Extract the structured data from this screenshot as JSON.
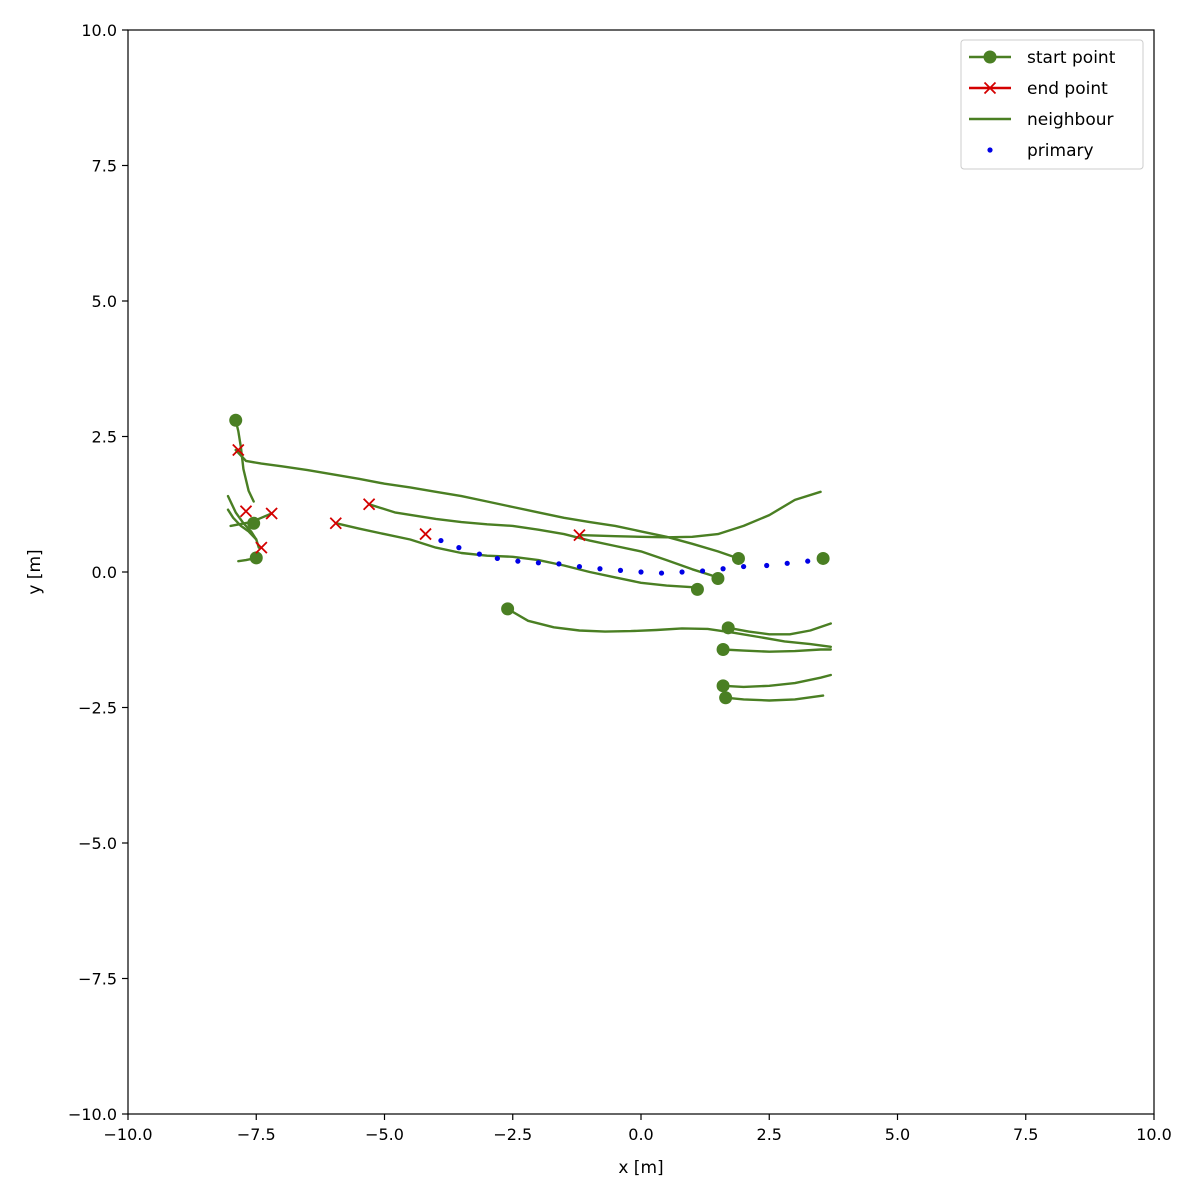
{
  "chart_data": {
    "type": "line",
    "title": "",
    "xlabel": "x [m]",
    "ylabel": "y [m]",
    "xlim": [
      -10,
      10
    ],
    "ylim": [
      -10,
      10
    ],
    "xticks": [
      -10,
      -7.5,
      -5,
      -2.5,
      0,
      2.5,
      5,
      7.5,
      10
    ],
    "yticks": [
      -10,
      -7.5,
      -5,
      -2.5,
      0,
      2.5,
      5,
      7.5,
      10
    ],
    "xtick_labels": [
      "−10.0",
      "−7.5",
      "−5.0",
      "−2.5",
      "0.0",
      "2.5",
      "5.0",
      "7.5",
      "10.0"
    ],
    "ytick_labels": [
      "−10.0",
      "−7.5",
      "−5.0",
      "−2.5",
      "0.0",
      "2.5",
      "5.0",
      "7.5",
      "10.0"
    ],
    "grid": false,
    "legend_position": "top-right",
    "legend": [
      {
        "label": "start point",
        "kind": "start",
        "color": "#4a7f23"
      },
      {
        "label": "end point",
        "kind": "end",
        "color": "#d40000"
      },
      {
        "label": "neighbour",
        "kind": "line",
        "color": "#4a7f23"
      },
      {
        "label": "primary",
        "kind": "dot",
        "color": "#0000e6"
      }
    ],
    "colors": {
      "neighbour": "#4a7f23",
      "end": "#d40000",
      "primary": "#0000e6"
    },
    "primary": {
      "x": [
        -3.9,
        -3.55,
        -3.15,
        -2.8,
        -2.4,
        -2.0,
        -1.6,
        -1.2,
        -0.8,
        -0.4,
        0.0,
        0.4,
        0.8,
        1.2,
        1.6,
        2.0,
        2.45,
        2.85,
        3.25
      ],
      "y": [
        0.58,
        0.45,
        0.33,
        0.25,
        0.2,
        0.17,
        0.15,
        0.1,
        0.06,
        0.03,
        0.0,
        -0.02,
        0.0,
        0.02,
        0.06,
        0.1,
        0.12,
        0.16,
        0.2
      ]
    },
    "neighbours": [
      {
        "x": [
          -7.9,
          -7.8,
          -7.7,
          -7.4,
          -7.0,
          -6.5,
          -6.0,
          -5.5,
          -5.0,
          -4.5,
          -4.0,
          -3.5,
          -3.0,
          -2.5,
          -2.0,
          -1.5,
          -1.0,
          -0.5,
          0.0,
          0.5,
          1.0,
          1.5,
          1.9
        ],
        "y": [
          2.25,
          2.15,
          2.05,
          2.0,
          1.95,
          1.88,
          1.8,
          1.72,
          1.63,
          1.56,
          1.48,
          1.4,
          1.3,
          1.2,
          1.1,
          1.0,
          0.92,
          0.85,
          0.75,
          0.65,
          0.52,
          0.38,
          0.25
        ]
      },
      {
        "x": [
          -1.2,
          -0.5,
          0.0,
          0.5,
          1.0,
          1.5,
          2.0,
          2.5,
          3.0,
          3.5
        ],
        "y": [
          0.68,
          0.66,
          0.65,
          0.64,
          0.65,
          0.7,
          0.85,
          1.05,
          1.33,
          1.48
        ]
      },
      {
        "x": [
          -5.3,
          -4.8,
          -4.0,
          -3.5,
          -3.0,
          -2.5,
          -2.0,
          -1.5,
          -1.0,
          -0.5,
          0.0,
          0.5,
          1.0,
          1.5
        ],
        "y": [
          1.25,
          1.1,
          0.98,
          0.92,
          0.88,
          0.85,
          0.78,
          0.7,
          0.58,
          0.48,
          0.38,
          0.22,
          0.05,
          -0.1
        ]
      },
      {
        "x": [
          -5.95,
          -5.5,
          -5.0,
          -4.5,
          -4.0,
          -3.5,
          -3.0,
          -2.5,
          -2.0,
          -1.5,
          -1.0,
          -0.5,
          0.0,
          0.5,
          1.0,
          1.1
        ],
        "y": [
          0.9,
          0.8,
          0.7,
          0.6,
          0.45,
          0.35,
          0.3,
          0.28,
          0.22,
          0.12,
          0.0,
          -0.1,
          -0.2,
          -0.25,
          -0.28,
          -0.32
        ]
      },
      {
        "x": [
          -7.9,
          -7.85,
          -7.8,
          -7.75,
          -7.65,
          -7.55
        ],
        "y": [
          2.8,
          2.6,
          2.3,
          1.9,
          1.5,
          1.3
        ]
      },
      {
        "x": [
          -8.05,
          -7.9,
          -7.75,
          -7.6,
          -7.5,
          -7.45
        ],
        "y": [
          1.4,
          1.1,
          0.9,
          0.75,
          0.6,
          0.45
        ]
      },
      {
        "x": [
          -8.05,
          -7.95,
          -7.8,
          -7.65,
          -7.5
        ],
        "y": [
          1.15,
          1.0,
          0.85,
          0.75,
          0.6
        ]
      },
      {
        "x": [
          -8.0,
          -7.6,
          -7.2
        ],
        "y": [
          0.85,
          0.92,
          1.08
        ]
      },
      {
        "x": [
          -7.85,
          -7.7,
          -7.5
        ],
        "y": [
          0.2,
          0.22,
          0.26
        ]
      },
      {
        "x": [
          -2.6,
          -2.2,
          -1.7,
          -1.2,
          -0.7,
          -0.2,
          0.3,
          0.8,
          1.3,
          1.8,
          2.3,
          2.8,
          3.3,
          3.7
        ],
        "y": [
          -0.68,
          -0.9,
          -1.02,
          -1.08,
          -1.1,
          -1.09,
          -1.07,
          -1.04,
          -1.05,
          -1.12,
          -1.2,
          -1.28,
          -1.33,
          -1.38
        ]
      },
      {
        "x": [
          1.7,
          2.1,
          2.5,
          2.9,
          3.3,
          3.7
        ],
        "y": [
          -1.03,
          -1.1,
          -1.15,
          -1.15,
          -1.08,
          -0.95
        ]
      },
      {
        "x": [
          1.6,
          2.0,
          2.5,
          3.0,
          3.5,
          3.7
        ],
        "y": [
          -1.43,
          -1.45,
          -1.47,
          -1.46,
          -1.43,
          -1.43
        ]
      },
      {
        "x": [
          1.6,
          2.0,
          2.5,
          3.0,
          3.5,
          3.7
        ],
        "y": [
          -2.1,
          -2.12,
          -2.1,
          -2.05,
          -1.95,
          -1.9
        ]
      },
      {
        "x": [
          1.65,
          2.0,
          2.5,
          3.0,
          3.55
        ],
        "y": [
          -2.32,
          -2.35,
          -2.37,
          -2.35,
          -2.28
        ]
      }
    ],
    "start_points": [
      {
        "x": -7.9,
        "y": 2.8
      },
      {
        "x": -7.55,
        "y": 0.9
      },
      {
        "x": -7.5,
        "y": 0.26
      },
      {
        "x": -2.6,
        "y": -0.68
      },
      {
        "x": 1.1,
        "y": -0.32
      },
      {
        "x": 1.5,
        "y": -0.12
      },
      {
        "x": 1.9,
        "y": 0.25
      },
      {
        "x": 3.55,
        "y": 0.25
      },
      {
        "x": 1.7,
        "y": -1.03
      },
      {
        "x": 1.6,
        "y": -1.43
      },
      {
        "x": 1.6,
        "y": -2.1
      },
      {
        "x": 1.65,
        "y": -2.32
      }
    ],
    "end_points": [
      {
        "x": -7.85,
        "y": 2.25
      },
      {
        "x": -7.7,
        "y": 1.12
      },
      {
        "x": -7.2,
        "y": 1.08
      },
      {
        "x": -7.4,
        "y": 0.45
      },
      {
        "x": -5.95,
        "y": 0.9
      },
      {
        "x": -5.3,
        "y": 1.25
      },
      {
        "x": -4.2,
        "y": 0.7
      },
      {
        "x": -1.2,
        "y": 0.68
      }
    ]
  }
}
